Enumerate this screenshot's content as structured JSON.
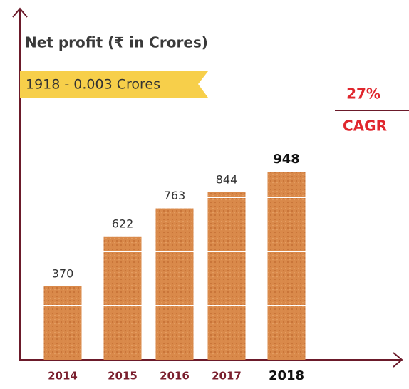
{
  "chart_data": {
    "type": "bar",
    "title": "Net profit (₹ in Crores)",
    "annotation": "1918 - 0.003 Crores",
    "cagr_value": "27%",
    "cagr_label": "CAGR",
    "categories": [
      "2014",
      "2015",
      "2016",
      "2017",
      "2018"
    ],
    "values": [
      370,
      622,
      763,
      844,
      948
    ],
    "color": "#d9894a"
  }
}
